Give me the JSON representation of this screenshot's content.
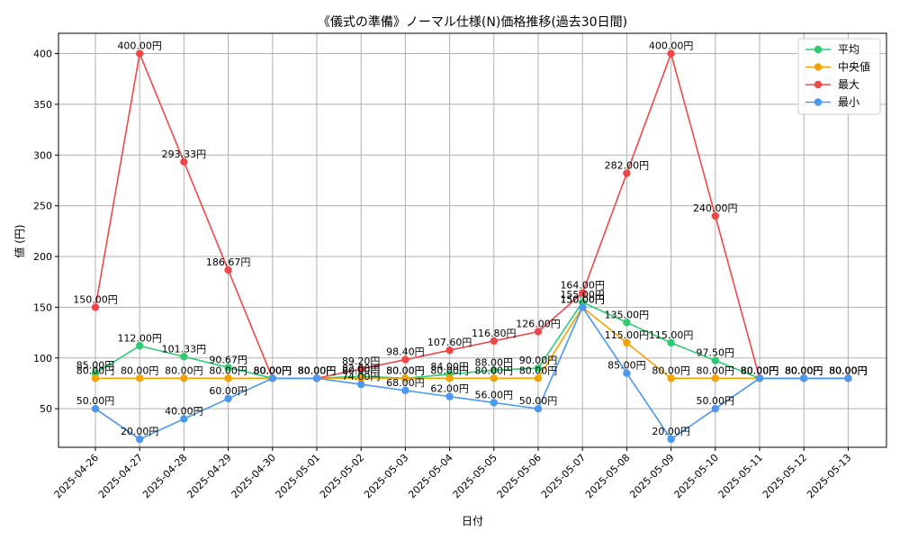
{
  "chart_data": {
    "type": "line",
    "title": "《儀式の準備》ノーマル仕様(N)価格推移(過去30日間)",
    "xlabel": "日付",
    "ylabel": "値 (円)",
    "ylim": [
      12,
      420
    ],
    "yticks": [
      50,
      100,
      150,
      200,
      250,
      300,
      350,
      400
    ],
    "grid": true,
    "legend_position": "top-right",
    "value_suffix": "円",
    "categories": [
      "2025-04-26",
      "2025-04-27",
      "2025-04-28",
      "2025-04-29",
      "2025-04-30",
      "2025-05-01",
      "2025-05-02",
      "2025-05-03",
      "2025-05-04",
      "2025-05-05",
      "2025-05-06",
      "2025-05-07",
      "2025-05-08",
      "2025-05-09",
      "2025-05-10",
      "2025-05-11",
      "2025-05-12",
      "2025-05-13"
    ],
    "series": [
      {
        "name": "平均",
        "color": "#2ecc71",
        "values": [
          85.0,
          112.0,
          101.33,
          90.67,
          80.0,
          80.0,
          82.0,
          80.0,
          84.0,
          88.0,
          90.0,
          155.0,
          135.0,
          115.0,
          97.5,
          80.0,
          80.0,
          80.0
        ]
      },
      {
        "name": "中央値",
        "color": "#f5a100",
        "values": [
          80.0,
          80.0,
          80.0,
          80.0,
          80.0,
          80.0,
          80.0,
          80.0,
          80.0,
          80.0,
          80.0,
          150.0,
          115.0,
          80.0,
          80.0,
          80.0,
          80.0,
          80.0
        ]
      },
      {
        "name": "最大",
        "color": "#f04848",
        "values": [
          150.0,
          400.0,
          293.33,
          186.67,
          80.0,
          80.0,
          89.2,
          98.4,
          107.6,
          116.8,
          126.0,
          164.0,
          282.0,
          400.0,
          240.0,
          80.0,
          80.0,
          80.0
        ]
      },
      {
        "name": "最小",
        "color": "#4a98f0",
        "values": [
          50.0,
          20.0,
          40.0,
          60.0,
          80.0,
          80.0,
          74.0,
          68.0,
          62.0,
          56.0,
          50.0,
          150.0,
          85.0,
          20.0,
          50.0,
          80.0,
          80.0,
          80.0
        ]
      }
    ]
  }
}
